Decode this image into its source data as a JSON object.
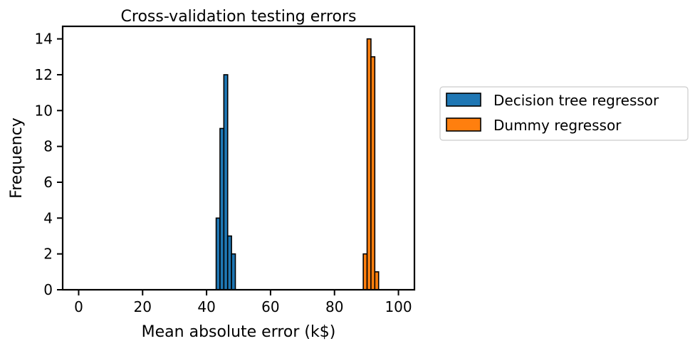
{
  "chart_data": {
    "type": "bar",
    "title": "Cross-validation testing errors",
    "xlabel": "Mean absolute error (k$)",
    "ylabel": "Frequency",
    "xlim": [
      -5,
      105
    ],
    "ylim": [
      0,
      14.7
    ],
    "xticks": [
      0,
      20,
      40,
      60,
      80,
      100
    ],
    "yticks": [
      0,
      2,
      4,
      6,
      8,
      10,
      12,
      14
    ],
    "grid": false,
    "legend_position": "outside-right",
    "series": [
      {
        "name": "Decision tree regressor",
        "color": "#1f77b4",
        "bins": [
          {
            "x0": 43.0,
            "x1": 44.2,
            "count": 4
          },
          {
            "x0": 44.2,
            "x1": 45.4,
            "count": 9
          },
          {
            "x0": 45.4,
            "x1": 46.6,
            "count": 12
          },
          {
            "x0": 46.6,
            "x1": 47.8,
            "count": 3
          },
          {
            "x0": 47.8,
            "x1": 49.0,
            "count": 2
          }
        ]
      },
      {
        "name": "Dummy regressor",
        "color": "#ff7f0e",
        "bins": [
          {
            "x0": 89.0,
            "x1": 90.2,
            "count": 2
          },
          {
            "x0": 90.2,
            "x1": 91.4,
            "count": 14
          },
          {
            "x0": 91.4,
            "x1": 92.6,
            "count": 13
          },
          {
            "x0": 92.6,
            "x1": 93.8,
            "count": 1
          }
        ]
      },
      {
        "name": "",
        "color": "#1f77b4",
        "bins": [
          {
            "x0": 0,
            "x1": 100,
            "count": 0
          }
        ]
      }
    ]
  }
}
